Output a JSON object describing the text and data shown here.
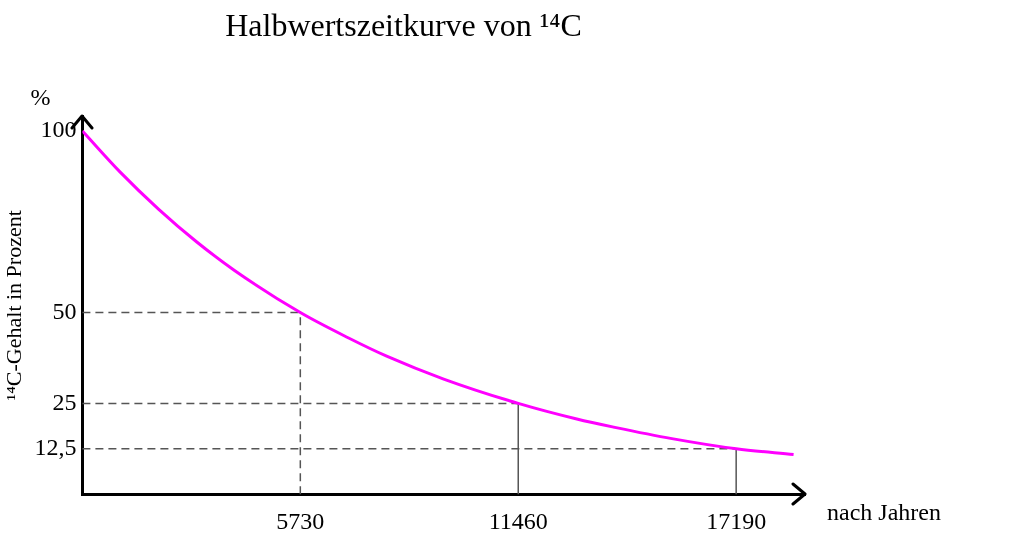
{
  "chart_data": {
    "type": "line",
    "title": "Halbwertszeitkurve von ¹⁴C",
    "xlabel": "nach Jahren",
    "ylabel": "¹⁴C-Gehalt in Prozent",
    "annotations": [
      "%"
    ],
    "x": [
      0,
      1000,
      2000,
      3000,
      4000,
      5730,
      7000,
      8000,
      9500,
      11460,
      13000,
      14000,
      15500,
      17190,
      18700
    ],
    "series": [
      {
        "color": "#ff00ff",
        "values": [
          100,
          88.6,
          78.5,
          69.5,
          61.6,
          50,
          43,
          38,
          31.7,
          25,
          20.7,
          18.4,
          15.3,
          12.5,
          10.9
        ]
      }
    ],
    "xlim": [
      0,
      19000
    ],
    "ylim": [
      0,
      104
    ],
    "xticks": [
      5730,
      11460,
      17190
    ],
    "yticks": [
      {
        "value": 12.5,
        "label": "12,5"
      },
      25,
      50,
      100
    ],
    "grid": false,
    "legend": false,
    "marker": "none",
    "line_style": "solid",
    "ref_lines": [
      {
        "axis": "y",
        "value": 50,
        "color": "#555555",
        "line_style": "dashed"
      },
      {
        "axis": "y",
        "value": 25,
        "color": "#555555",
        "line_style": "dashed"
      },
      {
        "axis": "y",
        "value": 12.5,
        "color": "#555555",
        "line_style": "dashed"
      },
      {
        "axis": "x",
        "value": 5730,
        "color": "#555555",
        "line_style": "dashed"
      },
      {
        "axis": "x",
        "value": 11460,
        "color": "#555555",
        "line_style": "solid"
      },
      {
        "axis": "x",
        "value": 17190,
        "color": "#555555",
        "line_style": "solid"
      }
    ]
  }
}
